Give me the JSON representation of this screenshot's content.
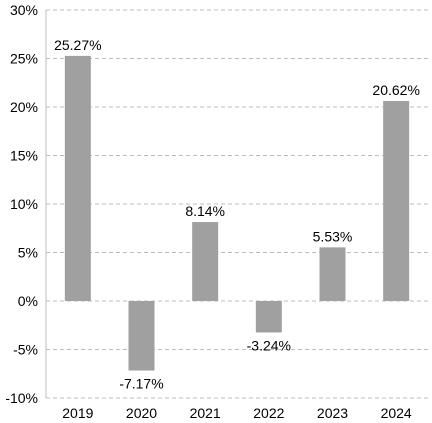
{
  "chart_data": {
    "type": "bar",
    "categories": [
      "2019",
      "2020",
      "2021",
      "2022",
      "2023",
      "2024"
    ],
    "values": [
      25.27,
      -7.17,
      8.14,
      -3.24,
      5.53,
      20.62
    ],
    "data_labels": [
      "25.27%",
      "-7.17%",
      "8.14%",
      "-3.24%",
      "5.53%",
      "20.62%"
    ],
    "yticks": [
      30,
      25,
      20,
      15,
      10,
      5,
      0,
      -5,
      -10
    ],
    "ytick_labels": [
      "30%",
      "25%",
      "20%",
      "15%",
      "10%",
      "5%",
      "0%",
      "-5%",
      "-10%"
    ],
    "ylim": [
      -10,
      30
    ],
    "grid": true,
    "title": "",
    "xlabel": "",
    "ylabel": "",
    "colors": {
      "bar": "#a0a0a0",
      "grid": "#bdbdbd",
      "axis": "#bfbfbf"
    }
  }
}
